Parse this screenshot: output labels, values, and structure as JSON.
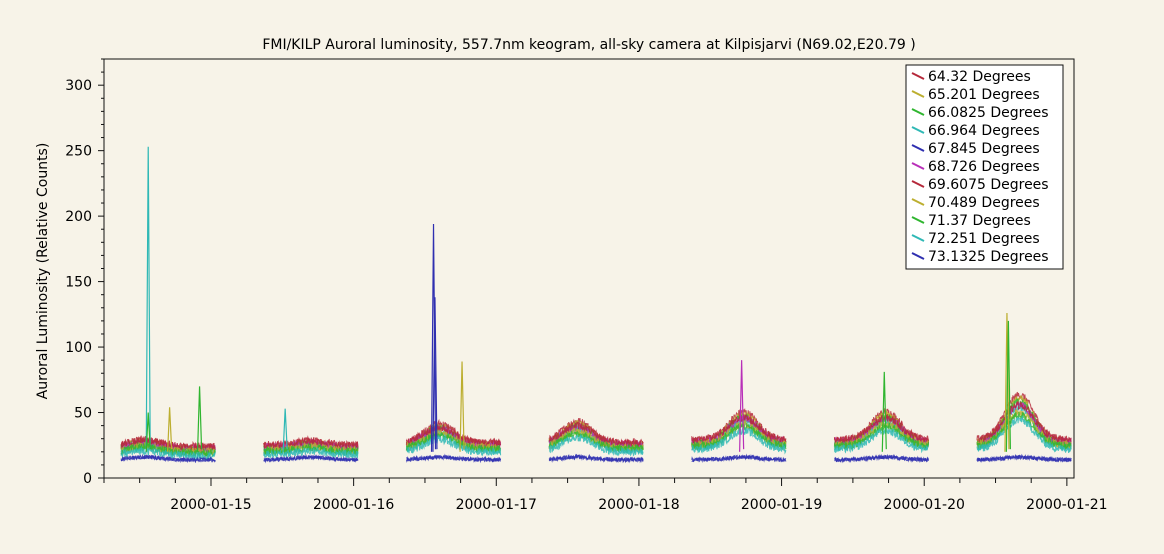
{
  "chart_data": {
    "type": "line",
    "title": "FMI/KILP  Auroral luminosity, 557.7nm keogram, all-sky camera at Kilpisjarvi (N69.02,E20.79 )",
    "xlabel": "",
    "ylabel": "Auroral Luminosity (Relative Counts)",
    "ylim": [
      0,
      320
    ],
    "y_ticks": [
      0,
      50,
      100,
      150,
      200,
      250,
      300
    ],
    "x_range_days": [
      0,
      6.8
    ],
    "x_ticks": [
      {
        "label": "2000-01-15",
        "day": 0.75
      },
      {
        "label": "2000-01-16",
        "day": 1.75
      },
      {
        "label": "2000-01-17",
        "day": 2.75
      },
      {
        "label": "2000-01-18",
        "day": 3.75
      },
      {
        "label": "2000-01-19",
        "day": 4.75
      },
      {
        "label": "2000-01-20",
        "day": 5.75
      },
      {
        "label": "2000-01-21",
        "day": 6.75
      }
    ],
    "legend_position": "top-right",
    "series": [
      {
        "name": "64.32 Degrees",
        "color": "#b5283a"
      },
      {
        "name": "65.201 Degrees",
        "color": "#bcae2f"
      },
      {
        "name": "66.0825 Degrees",
        "color": "#2fb52f"
      },
      {
        "name": "66.964 Degrees",
        "color": "#2fb8b5"
      },
      {
        "name": "67.845 Degrees",
        "color": "#2f2fb0"
      },
      {
        "name": "68.726 Degrees",
        "color": "#b82fb8"
      },
      {
        "name": "69.6075 Degrees",
        "color": "#b5283a"
      },
      {
        "name": "70.489 Degrees",
        "color": "#bcae2f"
      },
      {
        "name": "71.37 Degrees",
        "color": "#2fb52f"
      },
      {
        "name": "72.251 Degrees",
        "color": "#2fb8b5"
      },
      {
        "name": "73.1325 Degrees",
        "color": "#2f2fb0"
      }
    ],
    "night_segments": [
      {
        "start": 0.12,
        "end": 0.78,
        "base": 17,
        "hump": 6,
        "hump_at": 0.25
      },
      {
        "start": 1.12,
        "end": 1.78,
        "base": 18,
        "hump": 4,
        "hump_at": 0.5
      },
      {
        "start": 2.12,
        "end": 2.78,
        "base": 20,
        "hump": 15,
        "hump_at": 0.35
      },
      {
        "start": 3.12,
        "end": 3.78,
        "base": 20,
        "hump": 17,
        "hump_at": 0.3
      },
      {
        "start": 4.12,
        "end": 4.78,
        "base": 22,
        "hump": 22,
        "hump_at": 0.55
      },
      {
        "start": 5.12,
        "end": 5.78,
        "base": 22,
        "hump": 22,
        "hump_at": 0.55
      },
      {
        "start": 6.12,
        "end": 6.78,
        "base": 22,
        "hump": 35,
        "hump_at": 0.45
      }
    ],
    "spikes": [
      {
        "series": 3,
        "day": 0.31,
        "value": 253
      },
      {
        "series": 2,
        "day": 0.31,
        "value": 50
      },
      {
        "series": 1,
        "day": 0.46,
        "value": 54
      },
      {
        "series": 2,
        "day": 0.67,
        "value": 70
      },
      {
        "series": 3,
        "day": 1.27,
        "value": 53
      },
      {
        "series": 4,
        "day": 2.31,
        "value": 194
      },
      {
        "series": 4,
        "day": 2.32,
        "value": 138
      },
      {
        "series": 1,
        "day": 2.51,
        "value": 89
      },
      {
        "series": 5,
        "day": 4.47,
        "value": 90
      },
      {
        "series": 2,
        "day": 5.47,
        "value": 81
      },
      {
        "series": 1,
        "day": 6.33,
        "value": 126
      },
      {
        "series": 2,
        "day": 6.34,
        "value": 120
      }
    ]
  }
}
